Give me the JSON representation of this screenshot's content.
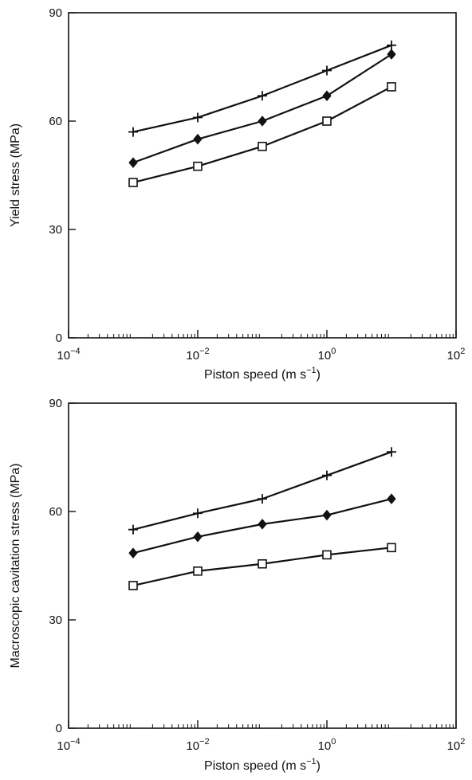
{
  "chart_data": [
    {
      "type": "line",
      "title": "",
      "xlabel": "Piston speed (m s",
      "xlabel_sup": "−1",
      "xlabel_close": ")",
      "ylabel": "Yield stress (MPa)",
      "x_scale": "log",
      "xlim": [
        0.0001,
        100
      ],
      "ylim": [
        0,
        90
      ],
      "y_ticks": [
        0,
        30,
        60,
        90
      ],
      "y_tick_labels": [
        "0",
        "30",
        "60",
        "90"
      ],
      "x_ticks": [
        0.0001,
        0.01,
        1,
        100
      ],
      "x_tick_labels": [
        {
          "base": "10",
          "exp": "−4"
        },
        {
          "base": "10",
          "exp": "−2"
        },
        {
          "base": "10",
          "exp": "0"
        },
        {
          "base": "10",
          "exp": "2"
        }
      ],
      "grid": false,
      "legend": "none",
      "x": [
        0.001,
        0.01,
        0.1,
        1,
        10
      ],
      "series": [
        {
          "marker": "plus",
          "values": [
            57,
            61,
            67,
            74,
            81
          ]
        },
        {
          "marker": "diamond",
          "values": [
            48.5,
            55,
            60,
            67,
            78.5
          ]
        },
        {
          "marker": "open-square",
          "values": [
            43,
            47.5,
            53,
            60,
            69.5
          ]
        }
      ]
    },
    {
      "type": "line",
      "title": "",
      "xlabel": "Piston speed (m s",
      "xlabel_sup": "−1",
      "xlabel_close": ")",
      "ylabel": "Macroscopic cavitation stress (MPa)",
      "x_scale": "log",
      "xlim": [
        0.0001,
        100
      ],
      "ylim": [
        0,
        90
      ],
      "y_ticks": [
        0,
        30,
        60,
        90
      ],
      "y_tick_labels": [
        "0",
        "30",
        "60",
        "90"
      ],
      "x_ticks": [
        0.0001,
        0.01,
        1,
        100
      ],
      "x_tick_labels": [
        {
          "base": "10",
          "exp": "−4"
        },
        {
          "base": "10",
          "exp": "−2"
        },
        {
          "base": "10",
          "exp": "0"
        },
        {
          "base": "10",
          "exp": "2"
        }
      ],
      "grid": false,
      "legend": "none",
      "x": [
        0.001,
        0.01,
        0.1,
        1,
        10
      ],
      "series": [
        {
          "marker": "plus",
          "values": [
            55,
            59.5,
            63.5,
            70,
            76.5
          ]
        },
        {
          "marker": "diamond",
          "values": [
            48.5,
            53,
            56.5,
            59,
            63.5
          ]
        },
        {
          "marker": "open-square",
          "values": [
            39.5,
            43.5,
            45.5,
            48,
            50
          ]
        }
      ]
    }
  ]
}
